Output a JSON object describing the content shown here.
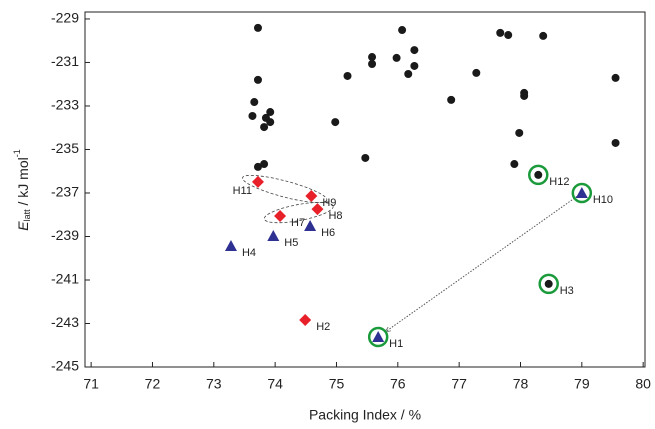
{
  "chart_data": {
    "type": "scatter",
    "xlabel": "Packing Index / %",
    "ylabel": {
      "main": "E",
      "sub": "latt",
      "unit": " / kJ mol",
      "sup": "-1"
    },
    "xlim": [
      70.9,
      80.03
    ],
    "ylim": [
      -245,
      -228.68
    ],
    "xticks": [
      71,
      72,
      73,
      74,
      75,
      76,
      77,
      78,
      79,
      80
    ],
    "yticks": [
      -229,
      -231,
      -233,
      -235,
      -237,
      -239,
      -241,
      -243,
      -245
    ],
    "series": [
      {
        "color": "#1a1a1a",
        "marker": "circle",
        "x": [
          73.72,
          73.66,
          73.72,
          73.63,
          73.92,
          73.85,
          73.92,
          73.82,
          74.98,
          73.72,
          73.82,
          75.18,
          75.58,
          75.58,
          75.47,
          75.98,
          76.07,
          76.17,
          76.27,
          76.27,
          76.87,
          77.28,
          77.67,
          77.8,
          78.06,
          78.06,
          78.37,
          77.98,
          77.9,
          79.55,
          79.55,
          78.29,
          78.46
        ],
        "values": [
          -229.41,
          -232.82,
          -231.8,
          -233.46,
          -233.28,
          -233.55,
          -233.74,
          -233.97,
          -233.74,
          -235.8,
          -235.67,
          -231.62,
          -230.75,
          -231.07,
          -235.39,
          -230.79,
          -229.51,
          -231.53,
          -230.43,
          -231.16,
          -232.72,
          -231.48,
          -229.64,
          -229.74,
          -232.4,
          -232.54,
          -229.78,
          -234.24,
          -235.67,
          -231.71,
          -234.7,
          -236.17,
          -241.18
        ]
      },
      {
        "color": "#e8202a",
        "marker": "diamond",
        "x": [
          73.72,
          74.59,
          74.69,
          74.08,
          74.49
        ],
        "values": [
          -236.49,
          -237.14,
          -237.74,
          -238.06,
          -242.84
        ]
      },
      {
        "color": "#2e3192",
        "marker": "triangle",
        "x": [
          73.28,
          73.97,
          74.57,
          75.68,
          79.0
        ],
        "values": [
          -239.44,
          -238.98,
          -238.52,
          -243.62,
          -237.0
        ]
      }
    ],
    "annotations": [
      {
        "text": "H1",
        "x": 75.68,
        "y": -243.62,
        "circled": true
      },
      {
        "text": "H2",
        "x": 74.49,
        "y": -242.84
      },
      {
        "text": "H3",
        "x": 78.46,
        "y": -241.18,
        "circled": true
      },
      {
        "text": "H4",
        "x": 73.28,
        "y": -239.44
      },
      {
        "text": "H5",
        "x": 73.97,
        "y": -238.98
      },
      {
        "text": "H6",
        "x": 74.57,
        "y": -238.52
      },
      {
        "text": "H7",
        "x": 74.08,
        "y": -238.06
      },
      {
        "text": "H8",
        "x": 74.69,
        "y": -237.74
      },
      {
        "text": "H9",
        "x": 74.59,
        "y": -237.14
      },
      {
        "text": "H10",
        "x": 79.0,
        "y": -237.0,
        "circled": true
      },
      {
        "text": "H11",
        "x": 73.72,
        "y": -236.49,
        "side": "left"
      },
      {
        "text": "H12",
        "x": 78.29,
        "y": -236.17,
        "circled": true
      }
    ],
    "arrows": [
      {
        "x1": 79.0,
        "y1": -237.0,
        "x2": 75.68,
        "y2": -243.62
      }
    ]
  }
}
